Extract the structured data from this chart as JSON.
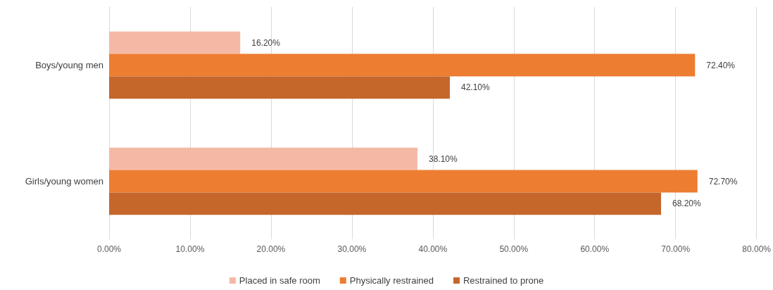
{
  "chart_data": {
    "type": "bar",
    "orientation": "horizontal",
    "categories": [
      "Boys/young men",
      "Girls/young women"
    ],
    "series": [
      {
        "name": "Placed in safe room",
        "color": "#f4b9a5",
        "values": [
          16.2,
          38.1
        ],
        "value_labels": [
          "16.20%",
          "38.10%"
        ]
      },
      {
        "name": "Physically restrained",
        "color": "#ed7d31",
        "values": [
          72.4,
          72.7
        ],
        "value_labels": [
          "72.40%",
          "72.70%"
        ]
      },
      {
        "name": "Restrained to prone",
        "color": "#c5672b",
        "values": [
          42.1,
          68.2
        ],
        "value_labels": [
          "42.10%",
          "68.20%"
        ]
      }
    ],
    "xlim": [
      0,
      80
    ],
    "xticks": [
      {
        "value": 0,
        "label": "0.00%"
      },
      {
        "value": 10,
        "label": "10.00%"
      },
      {
        "value": 20,
        "label": "20.00%"
      },
      {
        "value": 30,
        "label": "30.00%"
      },
      {
        "value": 40,
        "label": "40.00%"
      },
      {
        "value": 50,
        "label": "50.00%"
      },
      {
        "value": 60,
        "label": "60.00%"
      },
      {
        "value": 70,
        "label": "70.00%"
      },
      {
        "value": 80,
        "label": "80.00%"
      }
    ],
    "grid": "x",
    "legend": "bottom"
  }
}
